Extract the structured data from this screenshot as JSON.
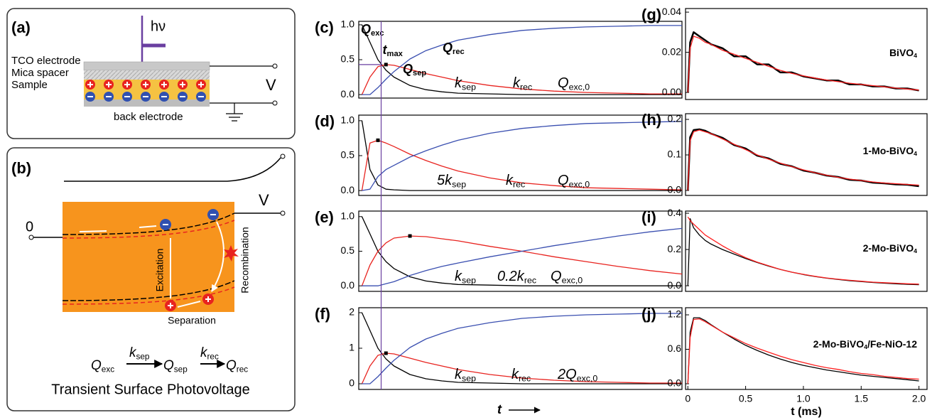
{
  "panel_a": {
    "label": "(a)",
    "photon": "hν",
    "tco": "TCO electrode",
    "mica": "Mica spacer",
    "sample": "Sample",
    "back": "back electrode",
    "voltage": "V"
  },
  "panel_b": {
    "label": "(b)",
    "voltage": "V",
    "zero": "0",
    "excitation": "Excitation",
    "recombination": "Recombination",
    "separation": "Separation",
    "scheme": {
      "q_exc": [
        "Q",
        "exc"
      ],
      "k_sep": [
        "k",
        "sep"
      ],
      "q_sep": [
        "Q",
        "sep"
      ],
      "k_rec": [
        "k",
        "rec"
      ],
      "q_rec": [
        "Q",
        "rec"
      ]
    },
    "caption": "Transient Surface Photovoltage"
  },
  "chart_data": [
    {
      "type": "line",
      "panel": "(c)",
      "xlim": [
        -0.1,
        10
      ],
      "ylim": [
        -0.05,
        1.05
      ],
      "yticks": [
        {
          "value": 0,
          "label": "0.0"
        },
        {
          "value": 0.5,
          "label": "0.5"
        },
        {
          "value": 1,
          "label": "1.0"
        }
      ],
      "x": [
        0,
        0.25,
        0.5,
        0.75,
        1,
        1.5,
        2,
        2.5,
        3,
        4,
        5,
        6,
        7,
        8,
        9,
        10
      ],
      "series": [
        {
          "name": [
            "Q",
            "exc"
          ],
          "color": "#000000",
          "values": [
            1,
            0.75,
            0.5,
            0.35,
            0.25,
            0.13,
            0.07,
            0.04,
            0.02,
            0.01,
            0,
            0,
            0,
            0,
            0,
            0
          ]
        },
        {
          "name": [
            "Q",
            "sep"
          ],
          "color": "#e8231f",
          "values": [
            0,
            0.25,
            0.4,
            0.43,
            0.42,
            0.36,
            0.3,
            0.25,
            0.2,
            0.13,
            0.08,
            0.05,
            0.03,
            0.02,
            0.01,
            0.01
          ]
        },
        {
          "name": [
            "Q",
            "rec"
          ],
          "color": "#3a4fb0",
          "values": [
            0,
            0,
            0.1,
            0.22,
            0.33,
            0.51,
            0.63,
            0.71,
            0.78,
            0.86,
            0.92,
            0.95,
            0.97,
            0.98,
            0.99,
            0.99
          ]
        }
      ],
      "annotations": [
        [
          "k",
          "sep"
        ],
        [
          "k",
          "rec"
        ],
        [
          "Q",
          "exc,0"
        ]
      ],
      "peak": {
        "x": 0.75,
        "y": 0.43
      },
      "tmax": {
        "label": [
          "t",
          "max"
        ],
        "x": 0.6,
        "y": 0.43
      }
    },
    {
      "type": "line",
      "panel": "(d)",
      "xlim": [
        -0.1,
        10
      ],
      "ylim": [
        -0.07,
        1.08
      ],
      "yticks": [
        {
          "value": 0,
          "label": "0.0"
        },
        {
          "value": 0.5,
          "label": "0.5"
        },
        {
          "value": 1,
          "label": "1.0"
        }
      ],
      "x": [
        0,
        0.25,
        0.5,
        0.75,
        1,
        1.5,
        2,
        2.5,
        3,
        4,
        5,
        6,
        7,
        8,
        9,
        10
      ],
      "series": [
        {
          "color": "#000000",
          "values": [
            1,
            0.3,
            0.08,
            0.02,
            0.01,
            0,
            0,
            0,
            0,
            0,
            0,
            0,
            0,
            0,
            0,
            0
          ]
        },
        {
          "color": "#e8231f",
          "values": [
            0,
            0.68,
            0.72,
            0.68,
            0.63,
            0.52,
            0.43,
            0.35,
            0.28,
            0.18,
            0.11,
            0.07,
            0.04,
            0.03,
            0.02,
            0.01
          ]
        },
        {
          "color": "#3a4fb0",
          "values": [
            0,
            0.02,
            0.2,
            0.3,
            0.36,
            0.48,
            0.57,
            0.65,
            0.72,
            0.82,
            0.89,
            0.93,
            0.96,
            0.97,
            0.98,
            0.99
          ]
        }
      ],
      "annotations": [
        [
          "5k",
          "sep"
        ],
        [
          "k",
          "rec"
        ],
        [
          "Q",
          "exc,0"
        ]
      ],
      "peak": {
        "x": 0.5,
        "y": 0.72
      }
    },
    {
      "type": "line",
      "panel": "(e)",
      "xlim": [
        -0.1,
        10
      ],
      "ylim": [
        -0.08,
        1.08
      ],
      "yticks": [
        {
          "value": 0,
          "label": "0.0"
        },
        {
          "value": 0.5,
          "label": "0.5"
        },
        {
          "value": 1,
          "label": "1.0"
        }
      ],
      "x": [
        0,
        0.25,
        0.5,
        0.75,
        1,
        1.5,
        2,
        2.5,
        3,
        4,
        5,
        6,
        7,
        8,
        9,
        10
      ],
      "series": [
        {
          "color": "#000000",
          "values": [
            1,
            0.75,
            0.5,
            0.35,
            0.25,
            0.13,
            0.07,
            0.04,
            0.02,
            0.01,
            0,
            0,
            0,
            0,
            0,
            0
          ]
        },
        {
          "color": "#e8231f",
          "values": [
            0,
            0.3,
            0.5,
            0.62,
            0.69,
            0.72,
            0.71,
            0.68,
            0.65,
            0.57,
            0.5,
            0.42,
            0.35,
            0.28,
            0.22,
            0.17
          ]
        },
        {
          "color": "#3a4fb0",
          "values": [
            0,
            0,
            0,
            0.03,
            0.06,
            0.15,
            0.22,
            0.28,
            0.33,
            0.42,
            0.5,
            0.58,
            0.65,
            0.72,
            0.78,
            0.83
          ]
        }
      ],
      "annotations": [
        [
          "k",
          "sep"
        ],
        [
          "0.2k",
          "rec"
        ],
        [
          "Q",
          "exc,0"
        ]
      ],
      "peak": {
        "x": 1.5,
        "y": 0.72
      }
    },
    {
      "type": "line",
      "panel": "(f)",
      "xlim": [
        -0.1,
        10
      ],
      "ylim": [
        -0.16,
        2.14
      ],
      "yticks": [
        0,
        1,
        2
      ],
      "xlabel": "t",
      "x": [
        0,
        0.25,
        0.5,
        0.75,
        1,
        1.5,
        2,
        2.5,
        3,
        4,
        5,
        6,
        7,
        8,
        9,
        10
      ],
      "series": [
        {
          "color": "#000000",
          "values": [
            2,
            1.5,
            1,
            0.7,
            0.5,
            0.26,
            0.14,
            0.08,
            0.04,
            0.02,
            0,
            0,
            0,
            0,
            0,
            0
          ]
        },
        {
          "color": "#e8231f",
          "values": [
            0,
            0.5,
            0.8,
            0.86,
            0.84,
            0.72,
            0.6,
            0.5,
            0.4,
            0.26,
            0.16,
            0.1,
            0.06,
            0.04,
            0.02,
            0.02
          ]
        },
        {
          "color": "#3a4fb0",
          "values": [
            0,
            0,
            0.2,
            0.44,
            0.66,
            1.02,
            1.26,
            1.42,
            1.56,
            1.72,
            1.84,
            1.9,
            1.94,
            1.96,
            1.98,
            1.98
          ]
        }
      ],
      "annotations": [
        [
          "k",
          "sep"
        ],
        [
          "k",
          "rec"
        ],
        [
          "2Q",
          "exc,0"
        ]
      ],
      "peak": {
        "x": 0.75,
        "y": 0.86
      }
    },
    {
      "type": "line",
      "panel": "(g)",
      "title": [
        "BiVO",
        "4"
      ],
      "xlim": [
        -0.02,
        2.07
      ],
      "ylim": [
        -0.0035,
        0.0418
      ],
      "yticks": [
        {
          "value": 0,
          "label": "0.00"
        },
        {
          "value": 0.02,
          "label": "0.02"
        },
        {
          "value": 0.04,
          "label": "0.04"
        }
      ],
      "x": [
        0,
        0.02,
        0.05,
        0.1,
        0.15,
        0.2,
        0.3,
        0.4,
        0.5,
        0.6,
        0.7,
        0.8,
        0.9,
        1.0,
        1.1,
        1.2,
        1.3,
        1.4,
        1.5,
        1.6,
        1.7,
        1.8,
        1.9,
        2.0
      ],
      "series": [
        {
          "color": "#000000",
          "values": [
            0,
            0.025,
            0.03,
            0.028,
            0.026,
            0.024,
            0.022,
            0.018,
            0.018,
            0.014,
            0.014,
            0.01,
            0.01,
            0.008,
            0.007,
            0.006,
            0.006,
            0.004,
            0.004,
            0.003,
            0.003,
            0.002,
            0.002,
            0.001
          ]
        },
        {
          "color": "#ff2020",
          "values": [
            0,
            0.022,
            0.028,
            0.027,
            0.025,
            0.024,
            0.021,
            0.019,
            0.017,
            0.015,
            0.013,
            0.011,
            0.0095,
            0.0083,
            0.0072,
            0.0062,
            0.0054,
            0.0046,
            0.004,
            0.0034,
            0.0028,
            0.0022,
            0.0017,
            0.0012
          ]
        }
      ]
    },
    {
      "type": "line",
      "panel": "(h)",
      "title": [
        "1-Mo-BiVO",
        "4"
      ],
      "xlim": [
        -0.02,
        2.07
      ],
      "ylim": [
        -0.014,
        0.216
      ],
      "yticks": [
        {
          "value": 0,
          "label": "0.0"
        },
        {
          "value": 0.1,
          "label": "0.1"
        },
        {
          "value": 0.2,
          "label": "0.2"
        }
      ],
      "x": [
        0,
        0.02,
        0.05,
        0.1,
        0.15,
        0.2,
        0.3,
        0.4,
        0.5,
        0.6,
        0.7,
        0.8,
        0.9,
        1.0,
        1.1,
        1.2,
        1.3,
        1.4,
        1.5,
        1.6,
        1.7,
        1.8,
        1.9,
        2.0
      ],
      "series": [
        {
          "color": "#000000",
          "values": [
            0,
            0.15,
            0.17,
            0.172,
            0.168,
            0.16,
            0.148,
            0.128,
            0.118,
            0.098,
            0.09,
            0.075,
            0.068,
            0.056,
            0.05,
            0.042,
            0.038,
            0.03,
            0.028,
            0.022,
            0.02,
            0.017,
            0.016,
            0.012
          ]
        },
        {
          "color": "#ff2020",
          "values": [
            0,
            0.14,
            0.165,
            0.17,
            0.165,
            0.16,
            0.145,
            0.13,
            0.115,
            0.1,
            0.088,
            0.077,
            0.067,
            0.058,
            0.05,
            0.043,
            0.037,
            0.032,
            0.028,
            0.024,
            0.021,
            0.019,
            0.017,
            0.015
          ]
        }
      ]
    },
    {
      "type": "line",
      "panel": "(i)",
      "title": [
        "2-Mo-BiVO",
        "4"
      ],
      "xlim": [
        -0.02,
        2.07
      ],
      "ylim": [
        -0.031,
        0.412
      ],
      "yticks": [
        {
          "value": 0,
          "label": "0.0"
        },
        {
          "value": 0.2,
          "label": "0.2"
        },
        {
          "value": 0.4,
          "label": "0.4"
        }
      ],
      "x": [
        0,
        0.02,
        0.05,
        0.1,
        0.15,
        0.2,
        0.3,
        0.4,
        0.5,
        0.6,
        0.7,
        0.8,
        0.9,
        1.0,
        1.1,
        1.2,
        1.3,
        1.4,
        1.5,
        1.6,
        1.7,
        1.8,
        1.9,
        2.0
      ],
      "series": [
        {
          "color": "#000000",
          "values": [
            0,
            0.37,
            0.32,
            0.28,
            0.25,
            0.23,
            0.2,
            0.175,
            0.15,
            0.128,
            0.108,
            0.09,
            0.075,
            0.062,
            0.051,
            0.042,
            0.035,
            0.028,
            0.023,
            0.018,
            0.014,
            0.011,
            0.008,
            0.006
          ]
        },
        {
          "color": "#ff2020",
          "values": [
            0.38,
            0.36,
            0.34,
            0.31,
            0.28,
            0.26,
            0.22,
            0.185,
            0.155,
            0.13,
            0.11,
            0.09,
            0.075,
            0.063,
            0.052,
            0.043,
            0.036,
            0.03,
            0.025,
            0.02,
            0.017,
            0.014,
            0.011,
            0.009
          ]
        }
      ]
    },
    {
      "type": "line",
      "panel": "(j)",
      "title": [
        "2-Mo-BiVO",
        "4",
        "/Fe-NiO-12"
      ],
      "xlim": [
        -0.02,
        2.07
      ],
      "ylim": [
        -0.099,
        1.324
      ],
      "yticks": [
        {
          "value": 0,
          "label": "0.0"
        },
        {
          "value": 0.6,
          "label": "0.6"
        },
        {
          "value": 1.2,
          "label": "1.2"
        }
      ],
      "xticks": [
        0,
        0.5,
        {
          "value": 1,
          "label": "1.0"
        },
        1.5,
        {
          "value": 2,
          "label": "2.0"
        }
      ],
      "xlabel": "t (ms)",
      "x": [
        0,
        0.02,
        0.05,
        0.1,
        0.15,
        0.2,
        0.3,
        0.4,
        0.5,
        0.6,
        0.7,
        0.8,
        0.9,
        1.0,
        1.1,
        1.2,
        1.3,
        1.4,
        1.5,
        1.6,
        1.7,
        1.8,
        1.9,
        2.0
      ],
      "series": [
        {
          "color": "#000000",
          "values": [
            0,
            0.9,
            1.15,
            1.15,
            1.1,
            1.03,
            0.9,
            0.78,
            0.67,
            0.58,
            0.5,
            0.43,
            0.37,
            0.32,
            0.28,
            0.24,
            0.21,
            0.18,
            0.15,
            0.13,
            0.11,
            0.09,
            0.07,
            0.05
          ]
        },
        {
          "color": "#ff2020",
          "values": [
            0,
            0.8,
            1.12,
            1.13,
            1.08,
            1.02,
            0.9,
            0.8,
            0.7,
            0.62,
            0.55,
            0.48,
            0.42,
            0.37,
            0.32,
            0.28,
            0.25,
            0.21,
            0.18,
            0.16,
            0.13,
            0.11,
            0.09,
            0.08
          ]
        }
      ]
    }
  ]
}
